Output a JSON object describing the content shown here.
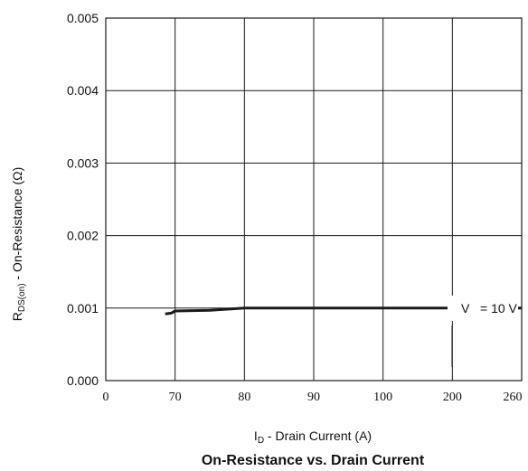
{
  "chart_data": {
    "type": "line",
    "title": "On-Resistance vs. Drain Current",
    "xlabel": {
      "prefix": "I",
      "sub": "D",
      "suffix": " - Drain Current (A)"
    },
    "ylabel": {
      "prefix": "R",
      "sub": "DS(on)",
      "suffix": " - On-Resistance (Ω)"
    },
    "x_tick_labels": [
      "0",
      "70",
      "80",
      "90",
      "100",
      "200",
      "260"
    ],
    "y_tick_labels": [
      "0.000",
      "0.001",
      "0.002",
      "0.003",
      "0.004",
      "0.005"
    ],
    "ylim": [
      0,
      0.005
    ],
    "x_scale": "non-uniform (labelled ticks evenly spaced)",
    "grid": true,
    "annotation": {
      "v": "V",
      "value": "= 10 V"
    },
    "series": [
      {
        "x": [
          60,
          66,
          70,
          75,
          80,
          90,
          100,
          200,
          260
        ],
        "y": [
          0.00092,
          0.00093,
          0.00096,
          0.00097,
          0.001,
          0.001,
          0.001,
          0.001,
          0.001
        ]
      }
    ],
    "colors": {
      "line": "#1a1a1a",
      "grid": "#1a1a1a"
    }
  }
}
